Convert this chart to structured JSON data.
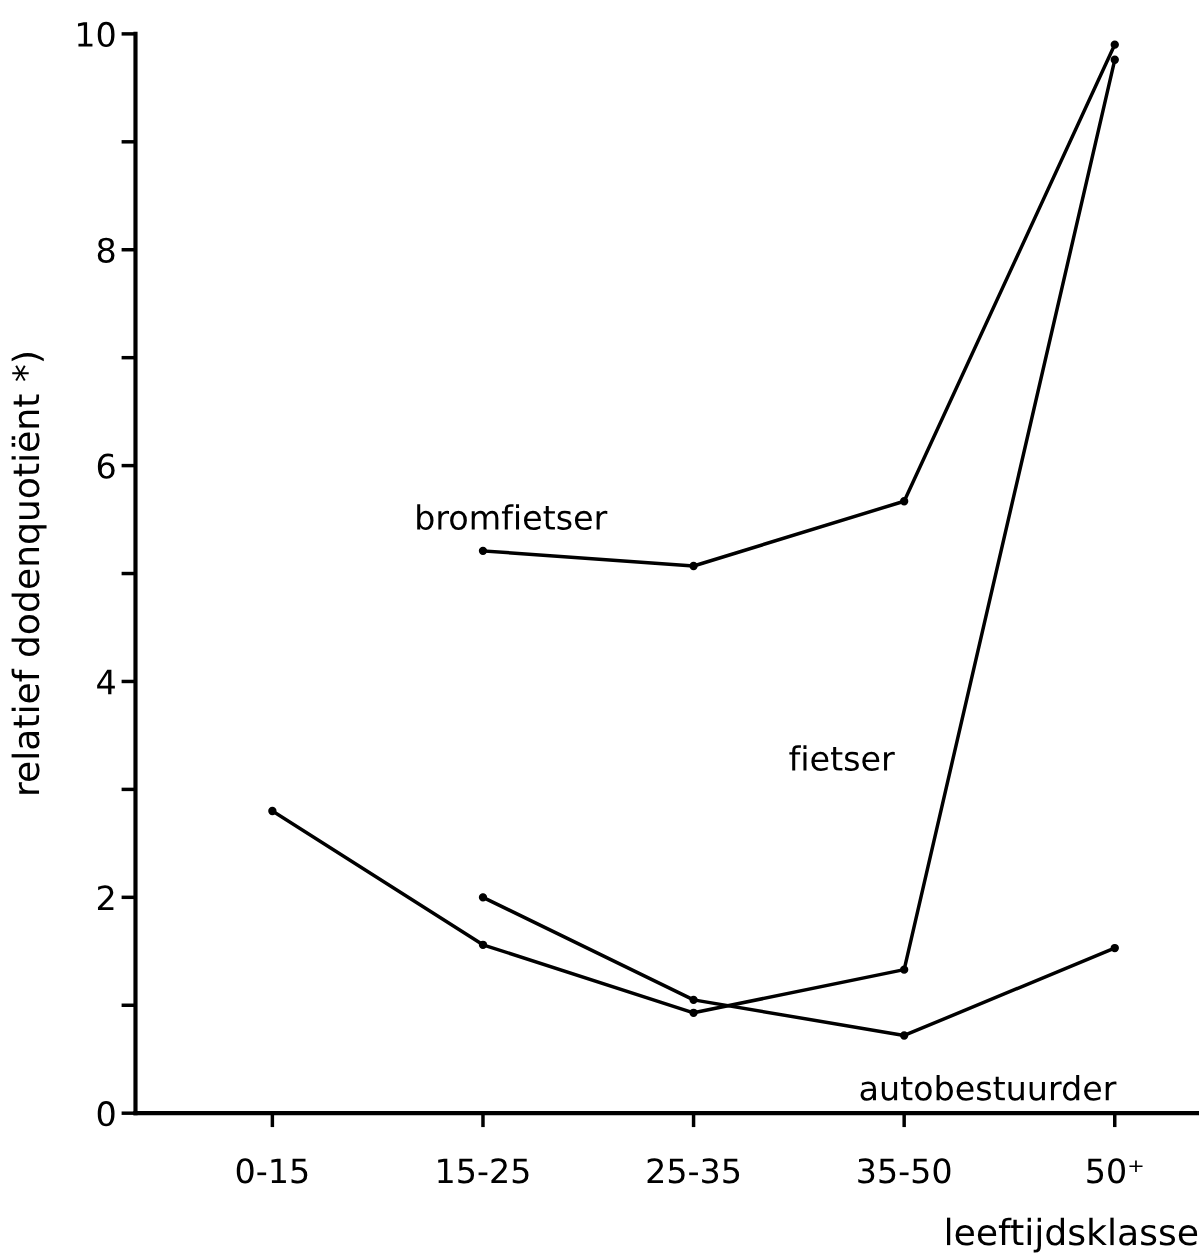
{
  "chart_data": {
    "type": "line",
    "xlabel": "leeftijdsklasse",
    "ylabel": "relatief dodenquotiënt *)",
    "categories": [
      "0-15",
      "15-25",
      "25-35",
      "35-50",
      "50⁺"
    ],
    "ylim": [
      0,
      10
    ],
    "yticks": [
      0,
      {
        "value": 1,
        "label": null
      },
      2,
      {
        "value": 3,
        "label": null
      },
      4,
      {
        "value": 5,
        "label": null
      },
      6,
      {
        "value": 7,
        "label": null
      },
      8,
      {
        "value": 9,
        "label": null
      },
      10
    ],
    "series": [
      {
        "name": "bromfietser",
        "color": "#000000",
        "values": [
          null,
          5.21,
          5.07,
          5.67,
          9.9
        ]
      },
      {
        "name": "fietser",
        "color": "#000000",
        "values": [
          2.8,
          1.56,
          0.93,
          1.33,
          9.76
        ]
      },
      {
        "name": "autobestuurder",
        "color": "#000000",
        "values": [
          null,
          2.0,
          1.05,
          0.72,
          1.53
        ]
      }
    ],
    "marker": "circle",
    "line_style": "solid",
    "grid": false,
    "legend": false
  }
}
